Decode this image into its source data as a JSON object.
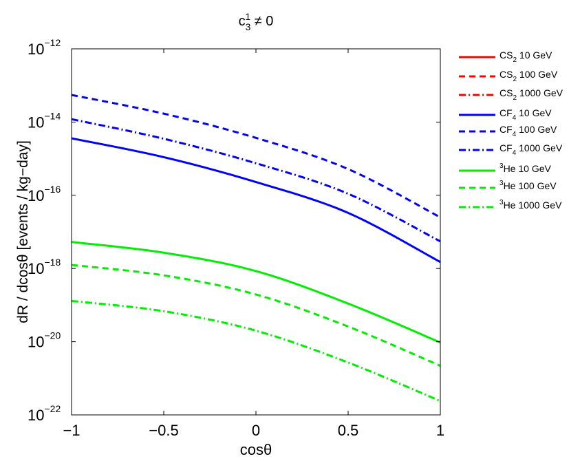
{
  "chart_data": {
    "type": "line",
    "title": {
      "base": "c",
      "sub": "3",
      "sup": "1",
      "suffix": " ≠ 0"
    },
    "xlabel": "cosθ",
    "ylabel": "dR / dcosθ  [events / kg−day]",
    "x_ticks": [
      "−1",
      "−0.5",
      "0",
      "0.5",
      "1"
    ],
    "y_ticks": [
      {
        "base": "10",
        "exp": "−12"
      },
      {
        "base": "10",
        "exp": "−14"
      },
      {
        "base": "10",
        "exp": "−16"
      },
      {
        "base": "10",
        "exp": "−18"
      },
      {
        "base": "10",
        "exp": "−20"
      },
      {
        "base": "10",
        "exp": "−22"
      }
    ],
    "xlim": [
      -1,
      1
    ],
    "ylim": [
      1e-22,
      1e-12
    ],
    "yscale": "log",
    "grid": false,
    "legend_position": "outside-right",
    "x": [
      -1,
      -0.5,
      0,
      0.5,
      1
    ],
    "series": [
      {
        "label": {
          "pre": "",
          "main": "CS",
          "sub": "2",
          "rest": " 10 GeV"
        },
        "color": "#ff0000",
        "dash": "solid",
        "values": null
      },
      {
        "label": {
          "pre": "",
          "main": "CS",
          "sub": "2",
          "rest": " 100 GeV"
        },
        "color": "#ff0000",
        "dash": "dashed",
        "values": null
      },
      {
        "label": {
          "pre": "",
          "main": "CS",
          "sub": "2",
          "rest": " 1000 GeV"
        },
        "color": "#ff0000",
        "dash": "dashdot",
        "values": null
      },
      {
        "label": {
          "pre": "",
          "main": "CF",
          "sub": "4",
          "rest": " 10 GeV"
        },
        "color": "#0000ff",
        "dash": "solid",
        "values": [
          3.6e-15,
          1.1e-15,
          2.3e-16,
          3.3e-17,
          1.5e-18
        ]
      },
      {
        "label": {
          "pre": "",
          "main": "CF",
          "sub": "4",
          "rest": " 100 GeV"
        },
        "color": "#0000ff",
        "dash": "dashed",
        "values": [
          5.5e-14,
          1.7e-14,
          3.7e-15,
          5.2e-16,
          2.5e-17
        ]
      },
      {
        "label": {
          "pre": "",
          "main": "CF",
          "sub": "4",
          "rest": " 1000 GeV"
        },
        "color": "#0000ff",
        "dash": "dashdot",
        "values": [
          1.2e-14,
          3.5e-15,
          7.5e-16,
          1.1e-16,
          5.5e-18
        ]
      },
      {
        "label": {
          "pre": "3",
          "main": "He",
          "sub": "",
          "rest": " 10 GeV"
        },
        "color": "#00ee00",
        "dash": "solid",
        "values": [
          5.3e-18,
          2.7e-18,
          8.5e-19,
          1.1e-19,
          9.5e-21
        ]
      },
      {
        "label": {
          "pre": "3",
          "main": "He",
          "sub": "",
          "rest": " 100 GeV"
        },
        "color": "#00ee00",
        "dash": "dashed",
        "values": [
          1.25e-18,
          6.5e-19,
          1.95e-19,
          2.6e-20,
          2.2e-21
        ]
      },
      {
        "label": {
          "pre": "3",
          "main": "He",
          "sub": "",
          "rest": " 1000 GeV"
        },
        "color": "#00ee00",
        "dash": "dashdot",
        "values": [
          1.3e-19,
          6.8e-20,
          2e-20,
          2.7e-21,
          2.4e-22
        ]
      }
    ]
  }
}
